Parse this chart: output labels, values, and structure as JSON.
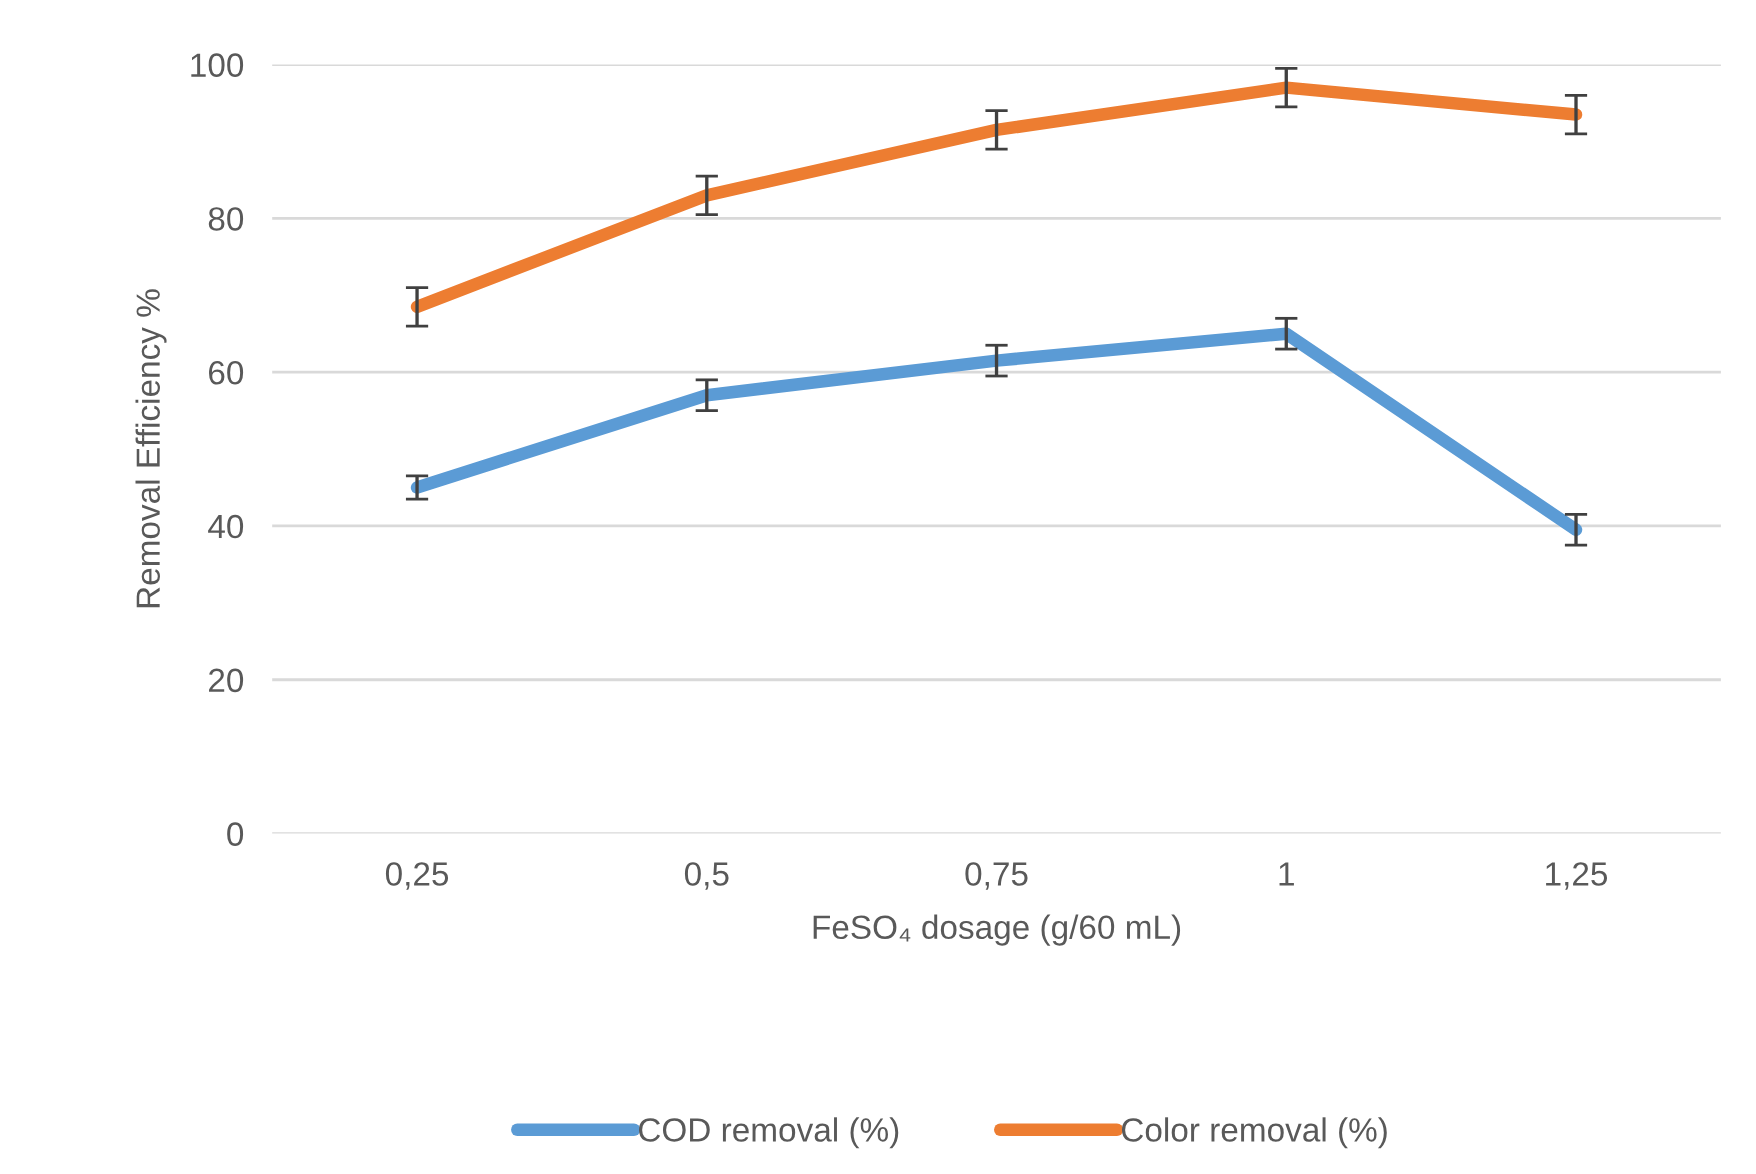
{
  "chart_data": {
    "type": "line",
    "xlabel": "FeSO₄ dosage (g/60 mL)",
    "ylabel": "Removal Efficiency %",
    "categories": [
      "0,25",
      "0,5",
      "0,75",
      "1",
      "1,25"
    ],
    "series": [
      {
        "name": "COD removal (%)",
        "color": "#5b9bd5",
        "values": [
          45,
          57,
          61.5,
          65,
          39.5
        ],
        "errors": [
          1.5,
          2,
          2,
          2,
          2
        ]
      },
      {
        "name": "Color removal (%)",
        "color": "#ed7d31",
        "values": [
          68.5,
          83,
          91.5,
          97,
          93.5
        ],
        "errors": [
          2.5,
          2.5,
          2.5,
          2.5,
          2.5
        ]
      }
    ],
    "ylim": [
      0,
      100
    ],
    "yticks": [
      0,
      20,
      40,
      60,
      80,
      100
    ],
    "grid": "y",
    "legend": "bottom",
    "marker": "none",
    "line_style": "solid"
  }
}
